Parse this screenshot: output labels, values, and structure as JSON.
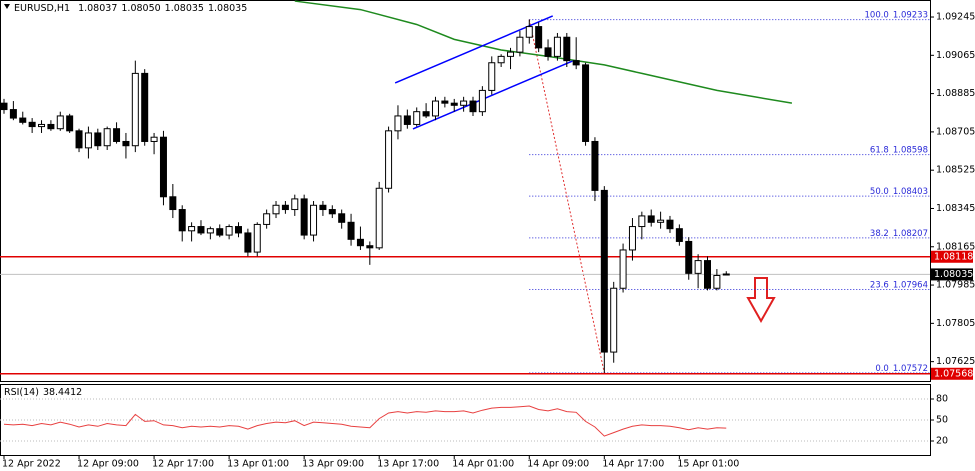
{
  "chart_data": [
    {
      "type": "candlestick",
      "symbol": "EURUSD,H1",
      "header_values": [
        1.08037,
        {
          "value": 1.0805,
          "label": "1.08050"
        },
        1.08035,
        1.08035
      ],
      "categories": [
        "12 Apr 2022",
        null,
        null,
        null,
        null,
        null,
        null,
        null,
        "12 Apr 09:00",
        null,
        null,
        null,
        null,
        null,
        null,
        null,
        "12 Apr 17:00",
        null,
        null,
        null,
        null,
        null,
        null,
        null,
        "13 Apr 01:00",
        null,
        null,
        null,
        null,
        null,
        null,
        null,
        "13 Apr 09:00",
        null,
        null,
        null,
        null,
        null,
        null,
        null,
        "13 Apr 17:00",
        null,
        null,
        null,
        null,
        null,
        null,
        null,
        "14 Apr 01:00",
        null,
        null,
        null,
        null,
        null,
        null,
        null,
        "14 Apr 09:00",
        null,
        null,
        null,
        null,
        null,
        null,
        null,
        "14 Apr 17:00",
        null,
        null,
        null,
        null,
        null,
        null,
        null,
        "15 Apr 01:00",
        null,
        null,
        null,
        null,
        null
      ],
      "open": [
        1.0884,
        1.0881,
        1.0877,
        1.0875,
        1.0873,
        1.0874,
        1.0872,
        1.0878,
        1.0871,
        1.0863,
        1.087,
        1.0864,
        1.0872,
        1.0866,
        1.0864,
        1.0898,
        1.0866,
        1.0868,
        1.084,
        1.0834,
        1.0824,
        1.0826,
        1.0823,
        1.0825,
        1.0822,
        1.0826,
        1.0823,
        1.0814,
        1.0827,
        1.0832,
        1.0836,
        1.0834,
        1.0839,
        1.0822,
        1.0836,
        1.0834,
        1.0832,
        1.0828,
        1.082,
        1.0817,
        1.0816,
        1.0844,
        1.0871,
        1.0878,
        1.0874,
        1.088,
        1.0878,
        1.0885,
        1.0884,
        1.0883,
        1.0885,
        1.088,
        1.089,
        1.0903,
        1.0906,
        1.0908,
        1.0915,
        1.092,
        1.091,
        1.0906,
        1.0915,
        1.0904,
        1.0902,
        1.0866,
        1.0843,
        1.0767,
        1.0797,
        1.0815,
        1.0826,
        1.0831,
        1.0828,
        1.0829,
        1.0825,
        1.0819,
        1.0804,
        1.081,
        1.0797,
        1.08037
      ],
      "high": [
        1.0886,
        1.0885,
        1.088,
        1.0877,
        1.0876,
        1.0876,
        1.088,
        1.0879,
        1.0872,
        1.0873,
        1.0872,
        1.0873,
        1.0875,
        1.087,
        1.0904,
        1.09,
        1.087,
        1.0871,
        1.0846,
        1.0836,
        1.0828,
        1.0829,
        1.0826,
        1.0827,
        1.0827,
        1.0828,
        1.0825,
        1.0828,
        1.0834,
        1.0838,
        1.0838,
        1.0841,
        1.0841,
        1.0838,
        1.0838,
        1.0836,
        1.0834,
        1.0832,
        1.0826,
        1.0819,
        1.0847,
        1.0873,
        1.0883,
        1.0881,
        1.0882,
        1.0884,
        1.0887,
        1.0887,
        1.0886,
        1.0887,
        1.0887,
        1.0892,
        1.0906,
        1.0907,
        1.091,
        1.0918,
        1.09233,
        1.0922,
        1.0914,
        1.0917,
        1.0917,
        1.0915,
        1.0903,
        1.0868,
        1.0845,
        1.08,
        1.0818,
        1.083,
        1.0833,
        1.0834,
        1.0833,
        1.0831,
        1.0827,
        1.0821,
        1.0813,
        1.0812,
        1.0806,
        1.0805
      ],
      "low": [
        1.0879,
        1.0876,
        1.0874,
        1.087,
        1.087,
        1.0871,
        1.0871,
        1.087,
        1.0861,
        1.0858,
        1.0862,
        1.0862,
        1.0865,
        1.0858,
        1.0861,
        1.0864,
        1.086,
        1.0836,
        1.083,
        1.0819,
        1.0819,
        1.0822,
        1.082,
        1.0821,
        1.082,
        1.0821,
        1.0812,
        1.0812,
        1.0825,
        1.083,
        1.0832,
        1.0831,
        1.082,
        1.0819,
        1.0831,
        1.083,
        1.0825,
        1.0817,
        1.0815,
        1.0808,
        1.0815,
        1.0842,
        1.0867,
        1.0872,
        1.0873,
        1.0877,
        1.0876,
        1.0882,
        1.088,
        1.088,
        1.0878,
        1.0878,
        1.0888,
        1.0901,
        1.09,
        1.0906,
        1.0912,
        1.0908,
        1.0904,
        1.0904,
        1.0901,
        1.09,
        1.0864,
        1.0838,
        1.07572,
        1.0762,
        1.0795,
        1.081,
        1.082,
        1.0826,
        1.0825,
        1.0823,
        1.0817,
        1.0801,
        1.0797,
        1.0796,
        1.0796,
        1.08035
      ],
      "close": [
        1.0881,
        1.0877,
        1.0875,
        1.0873,
        1.0874,
        1.0872,
        1.0878,
        1.0871,
        1.0863,
        1.087,
        1.0864,
        1.0872,
        1.0866,
        1.0864,
        1.0898,
        1.0866,
        1.0868,
        1.084,
        1.0834,
        1.0824,
        1.0826,
        1.0823,
        1.0825,
        1.0822,
        1.0826,
        1.0823,
        1.0814,
        1.0827,
        1.0832,
        1.0836,
        1.0834,
        1.0839,
        1.0822,
        1.0836,
        1.0834,
        1.0832,
        1.0828,
        1.082,
        1.0817,
        1.0816,
        1.0844,
        1.0871,
        1.0878,
        1.0874,
        1.088,
        1.0878,
        1.0885,
        1.0884,
        1.0883,
        1.0885,
        1.088,
        1.089,
        1.0903,
        1.0906,
        1.0908,
        1.0915,
        1.092,
        1.091,
        1.0906,
        1.0915,
        1.0904,
        1.0902,
        1.0866,
        1.0843,
        1.0767,
        1.0797,
        1.0815,
        1.0826,
        1.0831,
        1.0828,
        1.0829,
        1.0825,
        1.0819,
        1.0804,
        1.081,
        1.0797,
        1.0803,
        1.08035
      ],
      "up_color": "#ffffff",
      "down_color": "#000000",
      "ylim": [
        1.07534,
        1.09325
      ],
      "yticks": [
        1.09245,
        1.09065,
        1.08885,
        1.08705,
        1.08525,
        1.08345,
        1.08165,
        1.07985,
        1.07805,
        1.07625
      ],
      "moving_average": {
        "color": "#1e8a1e",
        "x": [
          31,
          38,
          44,
          48,
          53,
          58,
          61,
          64,
          68,
          72,
          76,
          80,
          84
        ],
        "values": [
          1.0932,
          1.0928,
          1.0921,
          1.0914,
          1.0909,
          1.0906,
          1.0904,
          1.0902,
          1.0898,
          1.0894,
          1.089,
          1.0887,
          1.0884
        ]
      },
      "channel": {
        "color": "#0000ff",
        "lines": [
          {
            "x": [
              41.7,
              58.5
            ],
            "values": [
              1.08935,
              1.0925
            ]
          },
          {
            "x": [
              43.6,
              60.6
            ],
            "values": [
              1.08719,
              1.09038
            ]
          }
        ]
      },
      "levels": [
        {
          "value": 1.08118,
          "color": "#e00000"
        },
        {
          "value": 1.07568,
          "color": "#e00000"
        }
      ],
      "current_price": 1.08035,
      "fibonacci": {
        "color": "#2a2ad8",
        "line_color": "#e03030",
        "x": [
          56,
          64
        ],
        "levels": [
          {
            "ratio": {
              "value": 100,
              "label": "100.0"
            },
            "price": 1.09233
          },
          {
            "ratio": 61.8,
            "price": 1.08598
          },
          {
            "ratio": {
              "value": 50,
              "label": "50.0"
            },
            "price": 1.08403
          },
          {
            "ratio": 38.2,
            "price": 1.08207
          },
          {
            "ratio": 23.6,
            "price": 1.07964
          },
          {
            "ratio": {
              "value": 0,
              "label": "0.0"
            },
            "price": 1.07572
          }
        ]
      }
    },
    {
      "type": "line",
      "title": "RSI(14)",
      "last_value": 38.4412,
      "color": "#e84040",
      "values": [
        44,
        43,
        44,
        42,
        45,
        43,
        47,
        44,
        40,
        43,
        41,
        45,
        43,
        42,
        58,
        48,
        49,
        43,
        42,
        39,
        41,
        40,
        41,
        40,
        42,
        41,
        37,
        42,
        45,
        47,
        46,
        49,
        42,
        47,
        46,
        45,
        44,
        41,
        40,
        39,
        52,
        60,
        62,
        60,
        62,
        61,
        63,
        62,
        62,
        63,
        60,
        64,
        67,
        68,
        68,
        69,
        70,
        65,
        63,
        66,
        62,
        61,
        48,
        40,
        27,
        32,
        37,
        41,
        43,
        42,
        42,
        41,
        39,
        36,
        39,
        37,
        39,
        38.4412
      ],
      "ylim": [
        0,
        100
      ],
      "yticks": [
        80,
        50,
        20
      ]
    }
  ]
}
